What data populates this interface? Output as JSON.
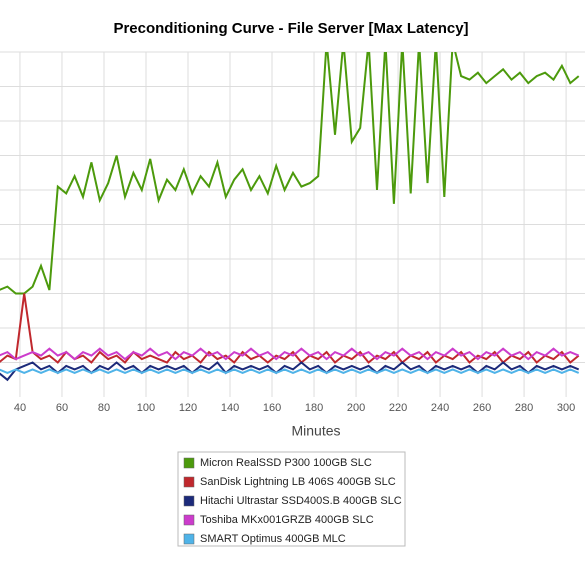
{
  "chart_data": {
    "type": "line",
    "title": "Preconditioning Curve - File Server [Max Latency]",
    "x_label": "Minutes",
    "x": [
      30,
      34,
      38,
      42,
      46,
      50,
      54,
      58,
      62,
      66,
      70,
      74,
      78,
      82,
      86,
      90,
      94,
      98,
      102,
      106,
      110,
      114,
      118,
      122,
      126,
      130,
      134,
      138,
      142,
      146,
      150,
      154,
      158,
      162,
      166,
      170,
      174,
      178,
      182,
      186,
      190,
      194,
      198,
      202,
      206,
      210,
      214,
      218,
      222,
      226,
      230,
      234,
      238,
      242,
      246,
      250,
      254,
      258,
      262,
      266,
      270,
      274,
      278,
      282,
      286,
      290,
      294,
      298,
      302,
      306
    ],
    "xlim": [
      30.5,
      309
    ],
    "xticks": [
      40,
      60,
      80,
      100,
      120,
      140,
      160,
      180,
      200,
      220,
      240,
      260,
      280,
      300
    ],
    "ylim": [
      0,
      10
    ],
    "ygrid": [
      1,
      2,
      3,
      4,
      5,
      6,
      7,
      8,
      9,
      10
    ],
    "grid": true,
    "series": [
      {
        "name": "Micron RealSSD P300 100GB SLC",
        "color": "#4c9a0c",
        "values": [
          3.1,
          3.2,
          3.0,
          3.0,
          3.2,
          3.8,
          3.1,
          6.1,
          5.9,
          6.4,
          5.8,
          6.8,
          5.7,
          6.2,
          7.0,
          5.8,
          6.5,
          6.0,
          6.9,
          5.7,
          6.3,
          6.0,
          6.6,
          5.9,
          6.4,
          6.1,
          6.8,
          5.8,
          6.3,
          6.6,
          6.0,
          6.4,
          5.9,
          6.7,
          6.0,
          6.5,
          6.1,
          6.2,
          6.4,
          10.3,
          7.6,
          10.3,
          7.4,
          7.8,
          10.3,
          6.0,
          10.3,
          5.6,
          10.3,
          5.9,
          10.3,
          6.2,
          10.3,
          5.8,
          10.3,
          9.3,
          9.2,
          9.4,
          9.1,
          9.3,
          9.5,
          9.2,
          9.4,
          9.1,
          9.3,
          9.4,
          9.2,
          9.6,
          9.1,
          9.3
        ]
      },
      {
        "name": "SanDisk Lightning LB 406S 400GB SLC",
        "color": "#c0282d",
        "values": [
          1.0,
          1.2,
          1.1,
          3.0,
          1.3,
          1.1,
          1.2,
          1.0,
          1.3,
          1.1,
          1.2,
          1.0,
          1.3,
          1.1,
          1.2,
          1.0,
          1.3,
          1.1,
          1.2,
          1.1,
          1.0,
          1.3,
          1.1,
          1.2,
          1.0,
          1.3,
          1.1,
          1.2,
          1.0,
          1.3,
          1.1,
          1.2,
          1.0,
          1.2,
          1.1,
          1.3,
          1.0,
          1.2,
          1.1,
          1.3,
          1.0,
          1.2,
          1.1,
          1.3,
          1.0,
          1.2,
          1.1,
          1.3,
          1.0,
          1.2,
          1.1,
          1.3,
          1.0,
          1.2,
          1.1,
          1.3,
          1.0,
          1.2,
          1.1,
          1.3,
          1.0,
          1.2,
          1.1,
          1.3,
          1.0,
          1.2,
          1.1,
          1.3,
          1.0,
          1.2
        ]
      },
      {
        "name": "Hitachi Ultrastar SSD400S.B 400GB SLC",
        "color": "#1c2a7a",
        "values": [
          0.7,
          0.5,
          0.8,
          0.9,
          1.0,
          0.8,
          0.9,
          0.7,
          0.9,
          0.8,
          0.9,
          0.7,
          0.9,
          0.8,
          1.0,
          0.8,
          0.9,
          0.7,
          0.9,
          0.8,
          0.9,
          0.8,
          0.9,
          0.7,
          0.9,
          0.8,
          1.0,
          0.7,
          0.9,
          0.8,
          0.9,
          0.8,
          0.9,
          0.7,
          0.9,
          0.8,
          1.0,
          0.8,
          0.9,
          0.7,
          0.9,
          0.8,
          0.9,
          0.8,
          0.9,
          0.7,
          0.9,
          0.8,
          1.0,
          0.8,
          0.9,
          0.7,
          0.9,
          0.8,
          0.9,
          0.8,
          0.9,
          0.7,
          0.9,
          0.8,
          1.0,
          0.8,
          0.9,
          0.7,
          0.9,
          0.8,
          0.9,
          0.8,
          0.9,
          0.8
        ]
      },
      {
        "name": "Toshiba MKx001GRZB 400GB SLC",
        "color": "#cc3ccc",
        "values": [
          1.2,
          1.3,
          1.1,
          1.2,
          1.3,
          1.2,
          1.4,
          1.2,
          1.3,
          1.1,
          1.3,
          1.2,
          1.4,
          1.2,
          1.3,
          1.1,
          1.3,
          1.2,
          1.4,
          1.2,
          1.3,
          1.1,
          1.3,
          1.2,
          1.4,
          1.2,
          1.3,
          1.1,
          1.3,
          1.2,
          1.4,
          1.2,
          1.3,
          1.1,
          1.3,
          1.2,
          1.4,
          1.2,
          1.3,
          1.1,
          1.3,
          1.2,
          1.4,
          1.2,
          1.3,
          1.1,
          1.3,
          1.2,
          1.4,
          1.2,
          1.3,
          1.1,
          1.3,
          1.2,
          1.4,
          1.2,
          1.3,
          1.1,
          1.3,
          1.2,
          1.4,
          1.2,
          1.3,
          1.1,
          1.3,
          1.2,
          1.4,
          1.2,
          1.3,
          1.2
        ]
      },
      {
        "name": "SMART Optimus 400GB MLC",
        "color": "#4fb3e8",
        "values": [
          0.8,
          0.7,
          0.8,
          0.7,
          0.8,
          0.7,
          0.8,
          0.7,
          0.8,
          0.7,
          0.8,
          0.7,
          0.8,
          0.7,
          0.8,
          0.7,
          0.8,
          0.7,
          0.8,
          0.7,
          0.8,
          0.7,
          0.8,
          0.7,
          0.8,
          0.7,
          0.8,
          0.7,
          0.8,
          0.7,
          0.8,
          0.7,
          0.8,
          0.7,
          0.8,
          0.7,
          0.8,
          0.7,
          0.8,
          0.7,
          0.8,
          0.7,
          0.8,
          0.7,
          0.8,
          0.7,
          0.8,
          0.7,
          0.8,
          0.7,
          0.8,
          0.7,
          0.8,
          0.7,
          0.8,
          0.7,
          0.8,
          0.7,
          0.8,
          0.7,
          0.8,
          0.7,
          0.8,
          0.7,
          0.8,
          0.7,
          0.8,
          0.7,
          0.8,
          0.7
        ]
      }
    ]
  }
}
